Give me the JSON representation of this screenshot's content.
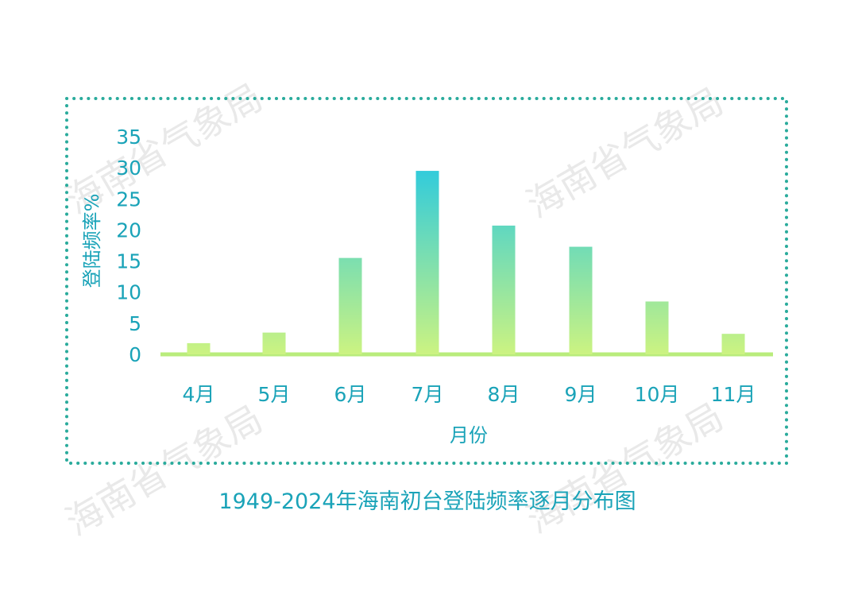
{
  "watermark": "海南省气象局",
  "caption": "1949-2024年海南初台登陆频率逐月分布图",
  "colors": {
    "accent": "#1aa3b8",
    "frame": "#2aab9c",
    "bar_top": "#30cbdc",
    "bar_bottom": "#ccf381",
    "axis_bottom": "#b9ec7c"
  },
  "chart_data": {
    "type": "bar",
    "categories": [
      "4月",
      "5月",
      "6月",
      "7月",
      "8月",
      "9月",
      "10月",
      "11月"
    ],
    "values": [
      1.8,
      3.5,
      15.5,
      29.5,
      20.7,
      17.3,
      8.5,
      3.3
    ],
    "xlabel": "月份",
    "ylabel": "登陆频率%",
    "ylim": [
      0,
      35
    ],
    "yticks": [
      0,
      5,
      10,
      15,
      20,
      25,
      30,
      35
    ],
    "grid": false
  }
}
